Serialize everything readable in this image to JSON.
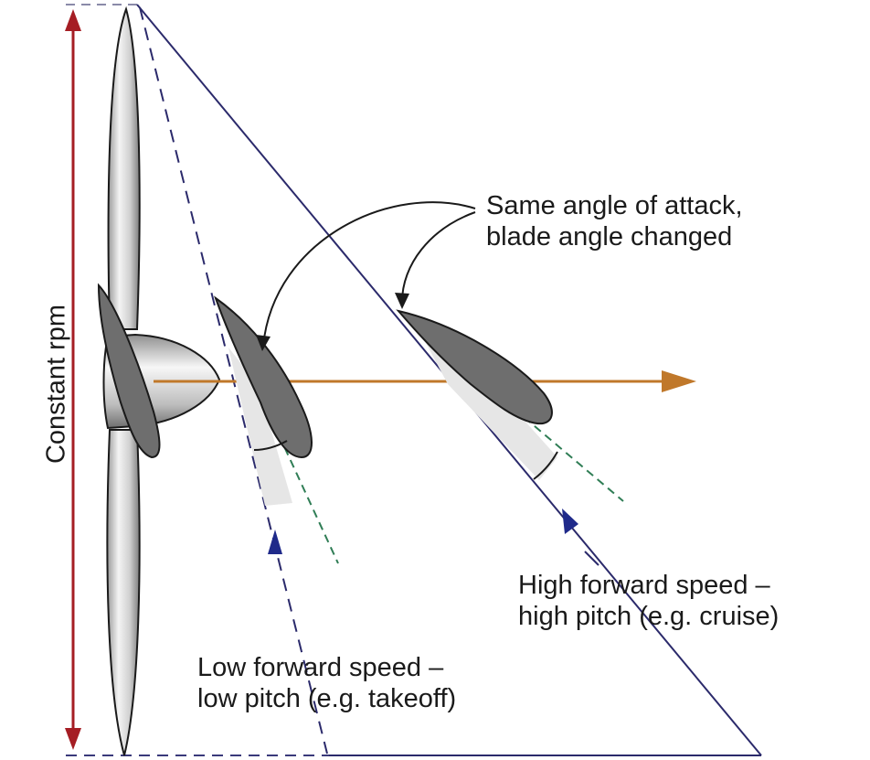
{
  "labels": {
    "same_angle_line1": "Same angle of attack,",
    "same_angle_line2": "blade angle changed",
    "high_speed_line1": "High forward speed –",
    "high_speed_line2": "high pitch (e.g. cruise)",
    "low_speed_line1": "Low forward speed –",
    "low_speed_line2": "low pitch (e.g. takeoff)",
    "constant_rpm": "Constant rpm"
  },
  "colors": {
    "rpm_arrow": "#a51d24",
    "thrust_arrow": "#c0782a",
    "helix_line": "#2b2a6b",
    "relative_wind_arrow": "#1f2a8a",
    "chord_line": "#2f7d55",
    "blade_fill": "#6e6e6e",
    "aoa_wedge": "#e6e6e6"
  },
  "icons": [
    "propeller-hub-icon",
    "airfoil-low-pitch-icon",
    "airfoil-high-pitch-icon"
  ]
}
